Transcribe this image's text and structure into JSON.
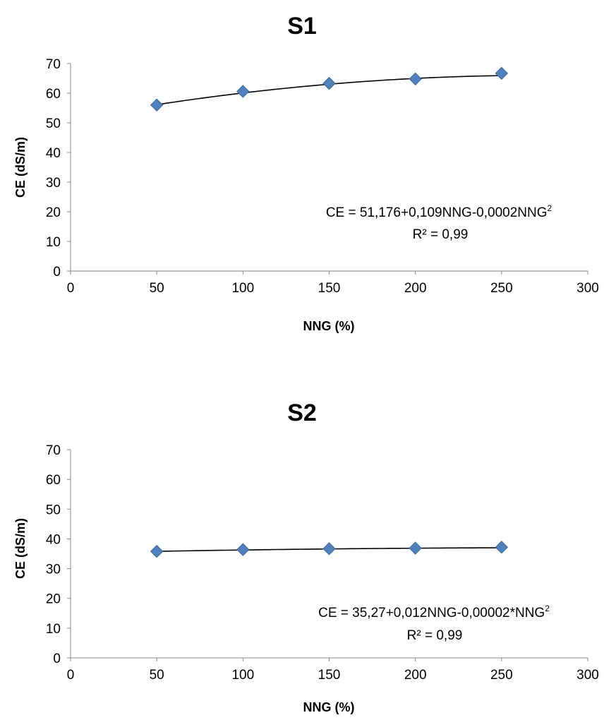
{
  "chart_data": [
    {
      "type": "scatter",
      "title": "S1",
      "xlabel": "NNG (%)",
      "ylabel": "CE (dS/m)",
      "xlim": [
        0,
        300
      ],
      "ylim": [
        0,
        70
      ],
      "xticks": [
        "0",
        "50",
        "100",
        "150",
        "200",
        "250",
        "300"
      ],
      "yticks": [
        "0",
        "10",
        "20",
        "30",
        "40",
        "50",
        "60",
        "70"
      ],
      "grid": false,
      "marker": "diamond",
      "marker_color": "#4F81BD",
      "trendline": {
        "type": "polynomial-2",
        "coefficients": [
          51.176,
          0.109,
          -0.0002
        ],
        "color": "#000000"
      },
      "series": [
        {
          "x": [
            50,
            100,
            150,
            200,
            250
          ],
          "values": [
            56,
            60.6,
            63.3,
            64.8,
            66.7
          ]
        }
      ],
      "equation": {
        "text": "CE = 51,176+0,109NNG-0,0002NNG",
        "sup": "2"
      },
      "r2": "R² = 0,99"
    },
    {
      "type": "scatter",
      "title": "S2",
      "xlabel": "NNG (%)",
      "ylabel": "CE (dS/m)",
      "xlim": [
        0,
        300
      ],
      "ylim": [
        0,
        70
      ],
      "xticks": [
        "0",
        "50",
        "100",
        "150",
        "200",
        "250",
        "300"
      ],
      "yticks": [
        "0",
        "10",
        "20",
        "30",
        "40",
        "50",
        "60",
        "70"
      ],
      "grid": false,
      "marker": "diamond",
      "marker_color": "#4F81BD",
      "trendline": {
        "type": "polynomial-2",
        "coefficients": [
          35.27,
          0.012,
          -2e-05
        ],
        "color": "#000000"
      },
      "series": [
        {
          "x": [
            50,
            100,
            150,
            200,
            250
          ],
          "values": [
            35.8,
            36.4,
            36.7,
            36.9,
            37.2
          ]
        }
      ],
      "equation": {
        "text": "CE = 35,27+0,012NNG-0,00002*NNG",
        "sup": "2"
      },
      "r2": "R² = 0,99"
    }
  ]
}
